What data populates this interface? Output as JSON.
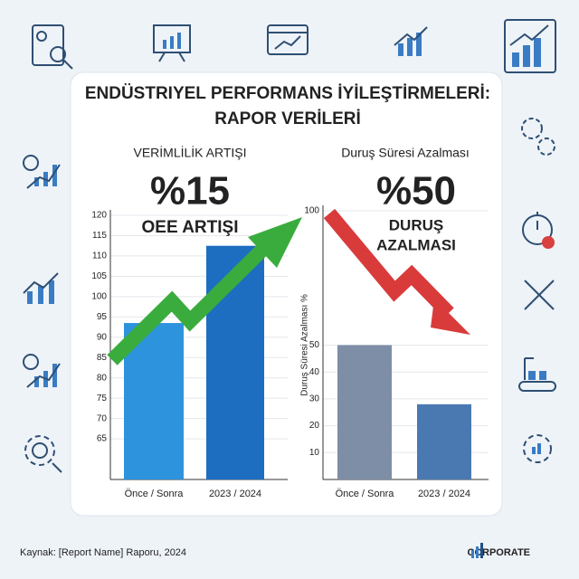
{
  "header": {
    "title_line1": "ENDÜSTRIYEL PERFORMANS İYİLEŞTİRMELERİ:",
    "title_line2": "RAPOR VERİLERİ"
  },
  "chart_data": [
    {
      "type": "bar",
      "title": "VERİMLİLİK ARTIŞI",
      "annotation_value": "%15",
      "annotation_text": "OEE ARTIŞI",
      "categories": [
        "Önce / Sonra",
        "2023 / 2024"
      ],
      "values": [
        93.5,
        112.5
      ],
      "colors": [
        "#2d93dc",
        "#1d6ec0"
      ],
      "ylim": [
        55,
        120
      ],
      "yticks": [
        65,
        70,
        75,
        80,
        85,
        90,
        95,
        100,
        105,
        110,
        115,
        120
      ],
      "grid": true
    },
    {
      "type": "bar",
      "title": "Duruş Süresi Azalması",
      "annotation_value": "%50",
      "annotation_text_line1": "DURUŞ",
      "annotation_text_line2": "AZALMASI",
      "y_label": "Duruş Süresi Azalması %",
      "categories": [
        "Önce / Sonra",
        "2023 / 2024"
      ],
      "values": [
        50,
        28
      ],
      "colors": [
        "#7d8ea6",
        "#4a79b2"
      ],
      "ylim": [
        0,
        100
      ],
      "yticks": [
        10,
        20,
        30,
        40,
        50,
        100
      ],
      "grid": true
    }
  ],
  "footer": {
    "source": "Kaynak: [Report Name] Raporu, 2024",
    "brand": "CORPORATE"
  }
}
